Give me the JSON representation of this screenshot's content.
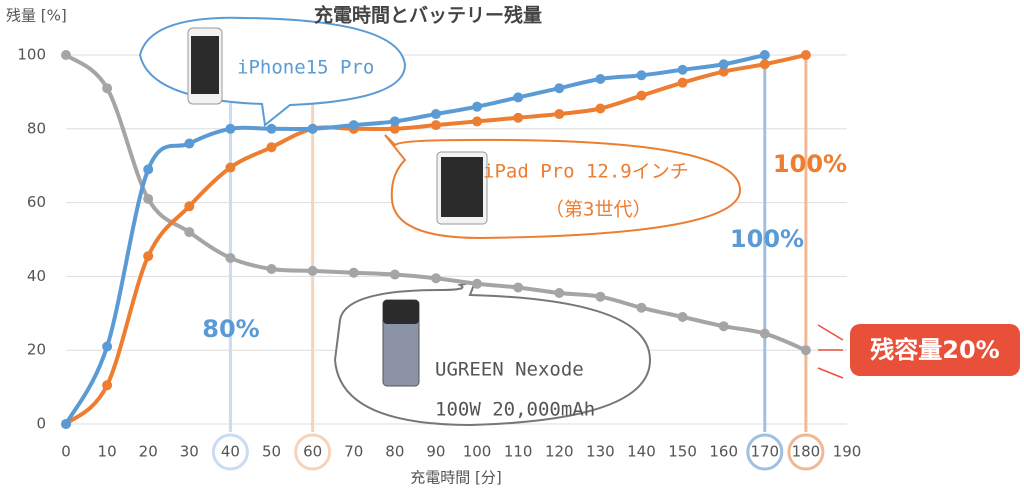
{
  "chart_data": {
    "type": "line",
    "title": "充電時間とバッテリー残量",
    "y_label": "残量 [%]",
    "x_label": "充電時間 [分]",
    "x": [
      0,
      10,
      20,
      30,
      40,
      50,
      60,
      70,
      80,
      90,
      100,
      110,
      120,
      130,
      140,
      150,
      160,
      170,
      180
    ],
    "series": [
      {
        "name": "UGREEN Nexode",
        "color": "#a5a5a5",
        "values": [
          100,
          91,
          61,
          52,
          45,
          42,
          41.5,
          41,
          40.5,
          39.5,
          38,
          37,
          35.5,
          34.5,
          31.5,
          29,
          26.5,
          24.5,
          20
        ]
      },
      {
        "name": "iPad Pro 12.9インチ",
        "color": "#ed7d31",
        "values": [
          0,
          10.5,
          45.5,
          59,
          69.5,
          75,
          80,
          80,
          80,
          81,
          82,
          83,
          84,
          85.5,
          89,
          92.5,
          95.5,
          97.5,
          100
        ]
      },
      {
        "name": "iPhone15 Pro",
        "color": "#5b9bd5",
        "values": [
          0,
          21,
          69,
          76,
          80,
          80,
          80,
          81,
          82,
          84,
          86,
          88.5,
          91,
          93.5,
          94.5,
          96,
          97.5,
          100,
          null
        ]
      }
    ],
    "xlim": [
      0,
      190
    ],
    "xticks": [
      0,
      10,
      20,
      30,
      40,
      50,
      60,
      70,
      80,
      90,
      100,
      110,
      120,
      130,
      140,
      150,
      160,
      170,
      180,
      190
    ],
    "ylim": [
      0,
      100
    ],
    "yticks": [
      0,
      20,
      40,
      60,
      80,
      100
    ],
    "grid": true,
    "highlights": [
      {
        "x": 40,
        "color": "#c9dcf0"
      },
      {
        "x": 60,
        "color": "#f6d3bb"
      },
      {
        "x": 170,
        "color": "#9fbfe3"
      },
      {
        "x": 180,
        "color": "#f0b894"
      }
    ],
    "annotations": [
      {
        "text": "80%",
        "color": "#5b9bd5"
      },
      {
        "text": "100%",
        "color": "#5b9bd5"
      },
      {
        "text": "100%",
        "color": "#ed7d31"
      },
      {
        "text": "残容量20%",
        "color": "#ffffff"
      },
      {
        "text": "100W 20,000mAh",
        "color": "#555555"
      },
      {
        "text": "（第3世代）",
        "color": "#ed7d31"
      }
    ]
  }
}
